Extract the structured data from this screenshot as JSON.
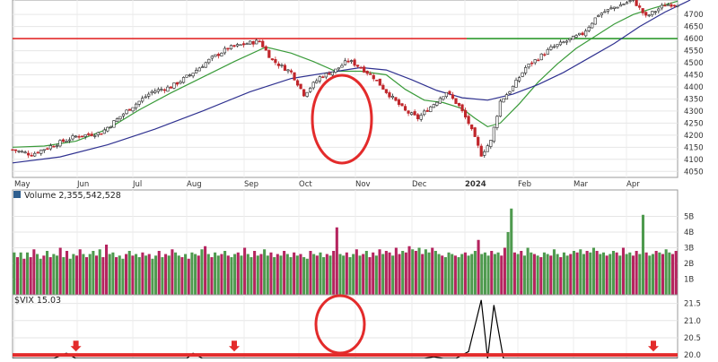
{
  "chart_data": [
    {
      "type": "candlestick",
      "xlabels": [
        "May",
        "Jun",
        "Jul",
        "Aug",
        "Sep",
        "Oct",
        "Nov",
        "Dec",
        "2024",
        "Feb",
        "Mar",
        "Apr"
      ],
      "ylim": [
        4025,
        4760
      ],
      "yticks": [
        4050,
        4100,
        4150,
        4200,
        4250,
        4300,
        4350,
        4400,
        4450,
        4500,
        4550,
        4600,
        4650,
        4700
      ],
      "grid": true,
      "axis_side": "right",
      "horizontal_levels": [
        {
          "value": 4600,
          "color": "#e32b2b",
          "span": "left"
        },
        {
          "value": 4600,
          "color": "#2e9a2e",
          "span": "right"
        }
      ],
      "close_path": [
        [
          0,
          4140
        ],
        [
          6,
          4120
        ],
        [
          12,
          4155
        ],
        [
          20,
          4195
        ],
        [
          28,
          4210
        ],
        [
          36,
          4300
        ],
        [
          44,
          4380
        ],
        [
          50,
          4400
        ],
        [
          56,
          4450
        ],
        [
          63,
          4520
        ],
        [
          68,
          4560
        ],
        [
          74,
          4580
        ],
        [
          78,
          4590
        ],
        [
          82,
          4510
        ],
        [
          88,
          4460
        ],
        [
          92,
          4370
        ],
        [
          97,
          4440
        ],
        [
          102,
          4470
        ],
        [
          106,
          4510
        ],
        [
          110,
          4480
        ],
        [
          114,
          4440
        ],
        [
          118,
          4380
        ],
        [
          124,
          4300
        ],
        [
          128,
          4270
        ],
        [
          133,
          4330
        ],
        [
          137,
          4380
        ],
        [
          141,
          4320
        ],
        [
          144,
          4250
        ],
        [
          148,
          4120
        ],
        [
          151,
          4175
        ],
        [
          154,
          4340
        ],
        [
          158,
          4400
        ],
        [
          162,
          4480
        ],
        [
          166,
          4520
        ],
        [
          170,
          4560
        ],
        [
          175,
          4590
        ],
        [
          180,
          4620
        ],
        [
          185,
          4700
        ],
        [
          190,
          4730
        ],
        [
          196,
          4760
        ],
        [
          200,
          4690
        ],
        [
          206,
          4740
        ],
        [
          210,
          4745
        ]
      ],
      "series": [
        {
          "name": "",
          "color": "#3a9b3a",
          "path": [
            [
              0,
              4150
            ],
            [
              10,
              4155
            ],
            [
              20,
              4175
            ],
            [
              30,
              4225
            ],
            [
              40,
              4305
            ],
            [
              50,
              4375
            ],
            [
              60,
              4440
            ],
            [
              70,
              4505
            ],
            [
              80,
              4565
            ],
            [
              88,
              4540
            ],
            [
              95,
              4505
            ],
            [
              102,
              4465
            ],
            [
              110,
              4465
            ],
            [
              118,
              4450
            ],
            [
              124,
              4390
            ],
            [
              130,
              4345
            ],
            [
              136,
              4335
            ],
            [
              142,
              4310
            ],
            [
              146,
              4270
            ],
            [
              150,
              4235
            ],
            [
              154,
              4250
            ],
            [
              160,
              4330
            ],
            [
              166,
              4420
            ],
            [
              172,
              4495
            ],
            [
              178,
              4560
            ],
            [
              184,
              4610
            ],
            [
              190,
              4660
            ],
            [
              196,
              4700
            ],
            [
              202,
              4725
            ],
            [
              210,
              4755
            ]
          ]
        },
        {
          "name": "",
          "color": "#2f3190",
          "path": [
            [
              0,
              4085
            ],
            [
              15,
              4110
            ],
            [
              30,
              4160
            ],
            [
              45,
              4225
            ],
            [
              60,
              4300
            ],
            [
              75,
              4380
            ],
            [
              88,
              4435
            ],
            [
              100,
              4460
            ],
            [
              110,
              4480
            ],
            [
              118,
              4470
            ],
            [
              126,
              4430
            ],
            [
              134,
              4385
            ],
            [
              142,
              4355
            ],
            [
              150,
              4345
            ],
            [
              158,
              4370
            ],
            [
              166,
              4410
            ],
            [
              174,
              4460
            ],
            [
              182,
              4520
            ],
            [
              190,
              4580
            ],
            [
              198,
              4650
            ],
            [
              206,
              4710
            ],
            [
              214,
              4760
            ]
          ]
        }
      ]
    },
    {
      "type": "bar",
      "title": "Volume 2,355,542,528",
      "yticks": [
        {
          "label": "1B",
          "value": 1
        },
        {
          "label": "2B",
          "value": 2
        },
        {
          "label": "3B",
          "value": 3
        },
        {
          "label": "4B",
          "value": 4
        },
        {
          "label": "5B",
          "value": 5
        }
      ],
      "ylim": [
        0,
        6
      ],
      "colors": {
        "up": "#4e9a4e",
        "down": "#b5245f"
      },
      "values": [
        2.7,
        2.4,
        2.7,
        2.3,
        2.7,
        2.4,
        2.9,
        2.6,
        2.3,
        2.5,
        2.8,
        2.4,
        2.6,
        2.5,
        3.0,
        2.4,
        2.8,
        2.3,
        2.6,
        2.5,
        2.9,
        2.6,
        2.4,
        2.6,
        2.8,
        2.5,
        2.9,
        2.4,
        3.2,
        2.6,
        2.7,
        2.4,
        2.5,
        2.3,
        2.6,
        2.8,
        2.5,
        2.6,
        2.4,
        2.7,
        2.5,
        2.6,
        2.3,
        2.5,
        2.8,
        2.4,
        2.6,
        2.5,
        2.9,
        2.7,
        2.5,
        2.4,
        2.6,
        2.3,
        2.7,
        2.6,
        2.5,
        2.9,
        3.1,
        2.6,
        2.4,
        2.7,
        2.5,
        2.6,
        2.8,
        2.5,
        2.4,
        2.6,
        2.7,
        2.5,
        3.0,
        2.6,
        2.4,
        2.8,
        2.5,
        2.6,
        2.9,
        2.5,
        2.7,
        2.4,
        2.6,
        2.5,
        2.8,
        2.6,
        2.4,
        2.7,
        2.5,
        2.6,
        2.4,
        2.3,
        2.8,
        2.6,
        2.5,
        2.7,
        2.4,
        2.6,
        2.5,
        2.8,
        4.3,
        2.6,
        2.5,
        2.7,
        2.4,
        2.6,
        2.9,
        2.5,
        2.6,
        2.8,
        2.4,
        2.7,
        2.5,
        2.9,
        2.6,
        2.8,
        2.7,
        2.5,
        3.0,
        2.6,
        2.8,
        2.7,
        3.1,
        2.9,
        2.8,
        3.0,
        2.6,
        2.9,
        2.7,
        3.0,
        2.8,
        2.6,
        2.5,
        2.4,
        2.7,
        2.6,
        2.5,
        2.4,
        2.6,
        2.7,
        2.5,
        2.6,
        2.8,
        3.5,
        2.6,
        2.7,
        2.5,
        2.8,
        2.6,
        2.7,
        2.5,
        3.0,
        4.0,
        5.5,
        2.7,
        2.6,
        2.8,
        2.5,
        3.0,
        2.7,
        2.6,
        2.5,
        2.4,
        2.7,
        2.6,
        2.5,
        2.9,
        2.6,
        2.4,
        2.7,
        2.5,
        2.6,
        2.8,
        2.7,
        2.9,
        2.6,
        2.8,
        2.7,
        3.0,
        2.8,
        2.6,
        2.7,
        2.5,
        2.6,
        2.8,
        2.7,
        2.5,
        3.0,
        2.6,
        2.7,
        2.5,
        2.8,
        2.6,
        5.1,
        2.7,
        2.5,
        2.6,
        2.8,
        2.7,
        2.6,
        2.9,
        2.7,
        2.6,
        2.8
      ],
      "up": [
        1,
        0,
        1,
        0,
        1,
        0,
        0,
        1,
        1,
        0,
        1,
        0,
        1,
        1,
        0,
        1,
        0,
        1,
        1,
        0,
        0,
        1,
        0,
        1,
        1,
        0,
        1,
        0,
        0,
        1,
        1,
        0,
        1,
        1,
        0,
        1,
        0,
        1,
        1,
        0,
        1,
        0,
        1,
        1,
        0,
        1,
        0,
        1,
        0,
        1,
        1,
        0,
        1,
        0,
        1,
        1,
        0,
        1,
        0,
        1,
        0,
        1,
        1,
        0,
        1,
        0,
        1,
        1,
        0,
        1,
        0,
        1,
        1,
        0,
        1,
        0,
        1,
        1,
        0,
        1,
        0,
        1,
        0,
        1,
        1,
        0,
        1,
        0,
        1,
        1,
        0,
        1,
        0,
        1,
        1,
        0,
        1,
        0,
        0,
        1,
        1,
        0,
        1,
        1,
        0,
        1,
        0,
        1,
        0,
        0,
        1,
        0,
        1,
        0,
        0,
        1,
        0,
        0,
        1,
        0,
        0,
        1,
        0,
        1,
        0,
        1,
        1,
        0,
        1,
        1,
        0,
        1,
        1,
        1,
        0,
        1,
        1,
        0,
        1,
        1,
        1,
        0,
        1,
        1,
        1,
        0,
        1,
        1,
        0,
        0,
        1,
        1,
        0,
        1,
        0,
        1,
        1,
        1,
        0,
        1,
        0,
        1,
        1,
        0,
        1,
        1,
        0,
        1,
        1,
        0,
        1,
        0,
        1,
        1,
        0,
        1,
        1,
        0,
        1,
        1,
        0,
        1,
        1,
        0,
        1,
        0,
        1,
        1,
        0,
        0,
        1,
        1,
        0,
        1,
        1,
        0,
        1,
        0,
        1,
        1
      ]
    },
    {
      "type": "line",
      "title": "$VIX 15.03",
      "color": "#000000",
      "yticks": [
        20.0,
        20.5,
        21.0,
        21.5
      ],
      "ylim": [
        19.9,
        21.75
      ],
      "threshold": 20.0,
      "threshold_color": "#e32b2b",
      "x": [
        0,
        13,
        17,
        20,
        30,
        48,
        55,
        57,
        60,
        70,
        72,
        75,
        80,
        90,
        100,
        120,
        130,
        133,
        136,
        140,
        144,
        148,
        150,
        152,
        155,
        160,
        170,
        190,
        210
      ],
      "values": [
        19.7,
        19.7,
        20.05,
        19.7,
        19.7,
        19.7,
        19.7,
        20.05,
        19.7,
        19.7,
        19.7,
        19.7,
        19.7,
        19.7,
        19.7,
        19.7,
        19.72,
        19.95,
        19.7,
        19.7,
        20.1,
        21.6,
        19.8,
        21.45,
        19.8,
        19.7,
        19.7,
        19.7,
        19.7
      ],
      "markers": [
        {
          "x": 20,
          "color": "#e32b2b"
        },
        {
          "x": 70,
          "color": "#e32b2b"
        },
        {
          "x": 728,
          "color": "#e32b2b"
        }
      ]
    }
  ],
  "annotations": [
    {
      "shape": "ellipse",
      "color": "#e32b2b",
      "panel": "price"
    },
    {
      "shape": "ellipse",
      "color": "#e32b2b",
      "panel": "vix"
    }
  ]
}
